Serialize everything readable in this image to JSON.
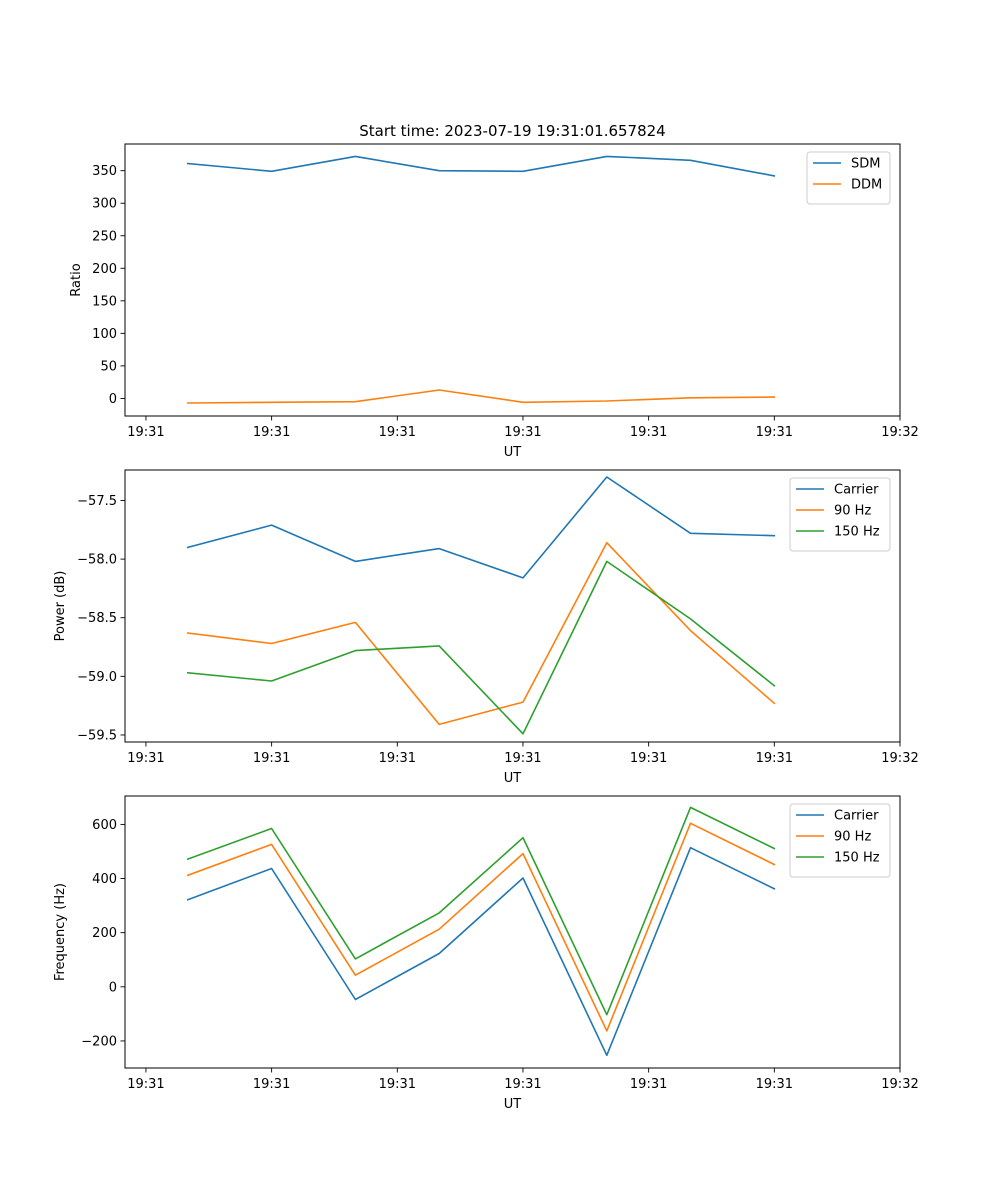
{
  "colors": {
    "blue": "#1f77b4",
    "orange": "#ff7f0e",
    "green": "#2ca02c",
    "axis": "#000000",
    "legend_border": "#cccccc"
  },
  "chart_data": [
    {
      "type": "line",
      "title": "Start time: 2023-07-19 19:31:01.657824",
      "xlabel": "UT",
      "ylabel": "Ratio",
      "xlim": [
        -0.75,
        8.5
      ],
      "ylim": [
        -27,
        391
      ],
      "x": [
        0,
        1,
        2,
        3,
        4,
        5,
        6,
        7
      ],
      "x_ticks": [
        -0.5,
        1,
        2.5,
        4,
        5.5,
        7,
        8.5
      ],
      "x_tick_labels": [
        "19:31",
        "19:31",
        "19:31",
        "19:31",
        "19:31",
        "19:31",
        "19:32"
      ],
      "y_ticks": [
        0,
        50,
        100,
        150,
        200,
        250,
        300,
        350
      ],
      "y_tick_labels": [
        "0",
        "50",
        "100",
        "150",
        "200",
        "250",
        "300",
        "350"
      ],
      "legend_position": "top-right",
      "series": [
        {
          "name": "SDM",
          "color": "blue",
          "values": [
            361,
            349,
            372,
            350,
            349,
            372,
            366,
            342
          ]
        },
        {
          "name": "DDM",
          "color": "orange",
          "values": [
            -7,
            -6,
            -5,
            13,
            -6,
            -4,
            1,
            2
          ]
        }
      ]
    },
    {
      "type": "line",
      "title": "",
      "xlabel": "UT",
      "ylabel": "Power (dB)",
      "xlim": [
        -0.75,
        8.5
      ],
      "ylim": [
        -59.56,
        -57.24
      ],
      "x": [
        0,
        1,
        2,
        3,
        4,
        5,
        6,
        7
      ],
      "x_ticks": [
        -0.5,
        1,
        2.5,
        4,
        5.5,
        7,
        8.5
      ],
      "x_tick_labels": [
        "19:31",
        "19:31",
        "19:31",
        "19:31",
        "19:31",
        "19:31",
        "19:32"
      ],
      "y_ticks": [
        -59.5,
        -59.0,
        -58.5,
        -58.0,
        -57.5
      ],
      "y_tick_labels": [
        "−59.5",
        "−59.0",
        "−58.5",
        "−58.0",
        "−57.5"
      ],
      "legend_position": "top-right",
      "series": [
        {
          "name": "Carrier",
          "color": "blue",
          "values": [
            -57.9,
            -57.71,
            -58.02,
            -57.91,
            -58.16,
            -57.3,
            -57.78,
            -57.8
          ]
        },
        {
          "name": "90 Hz",
          "color": "orange",
          "values": [
            -58.63,
            -58.72,
            -58.54,
            -59.41,
            -59.22,
            -57.86,
            -58.61,
            -59.23
          ]
        },
        {
          "name": "150 Hz",
          "color": "green",
          "values": [
            -58.97,
            -59.04,
            -58.78,
            -58.74,
            -59.49,
            -58.02,
            -58.51,
            -59.08
          ]
        }
      ]
    },
    {
      "type": "line",
      "title": "",
      "xlabel": "UT",
      "ylabel": "Frequency (Hz)",
      "xlim": [
        -0.75,
        8.5
      ],
      "ylim": [
        -300,
        705
      ],
      "x": [
        0,
        1,
        2,
        3,
        4,
        5,
        6,
        7
      ],
      "x_ticks": [
        -0.5,
        1,
        2.5,
        4,
        5.5,
        7,
        8.5
      ],
      "x_tick_labels": [
        "19:31",
        "19:31",
        "19:31",
        "19:31",
        "19:31",
        "19:31",
        "19:32"
      ],
      "y_ticks": [
        -200,
        0,
        200,
        400,
        600
      ],
      "y_tick_labels": [
        "−200",
        "0",
        "200",
        "400",
        "600"
      ],
      "legend_position": "top-right",
      "series": [
        {
          "name": "Carrier",
          "color": "blue",
          "values": [
            322,
            437,
            -47,
            123,
            402,
            -253,
            514,
            362
          ]
        },
        {
          "name": "90 Hz",
          "color": "orange",
          "values": [
            412,
            526,
            43,
            213,
            492,
            -163,
            604,
            452
          ]
        },
        {
          "name": "150 Hz",
          "color": "green",
          "values": [
            472,
            585,
            103,
            273,
            551,
            -103,
            663,
            511
          ]
        }
      ]
    }
  ]
}
